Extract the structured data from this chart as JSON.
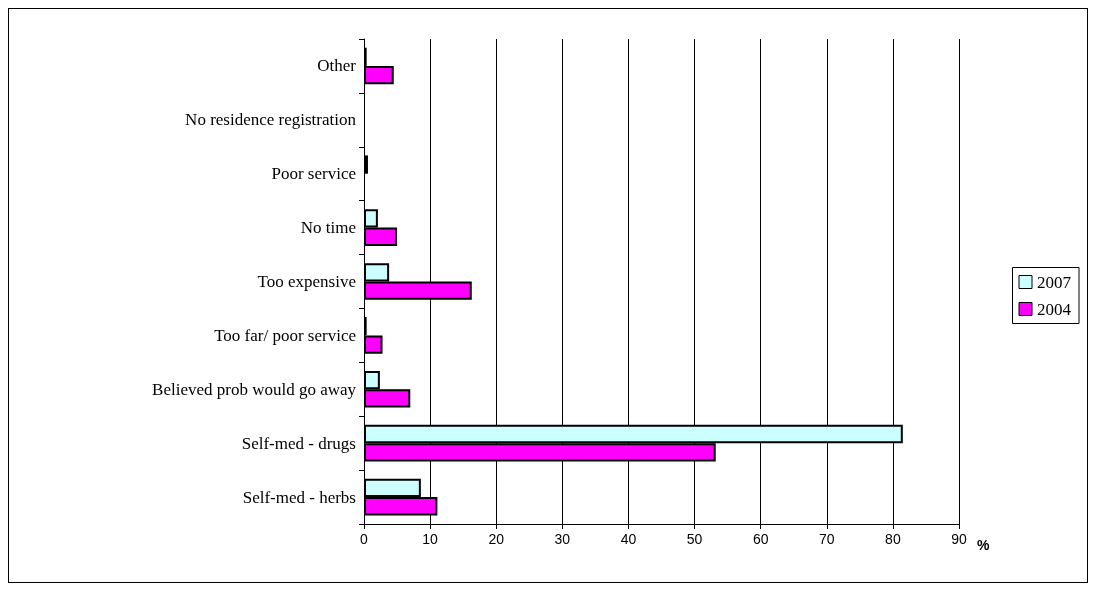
{
  "chart_data": {
    "type": "bar",
    "orientation": "horizontal",
    "xlabel": "%",
    "categories": [
      "Other",
      "No residence registration",
      "Poor service",
      "No time",
      "Too expensive",
      "Too far/ poor service",
      "Believed prob would go away",
      "Self-med - drugs",
      "Self-med - herbs"
    ],
    "series": [
      {
        "name": "2007",
        "color": "#ccffff",
        "values": [
          0.4,
          null,
          0.6,
          2.1,
          3.8,
          0.4,
          2.4,
          81.5,
          8.6
        ]
      },
      {
        "name": "2004",
        "color": "#ff00ff",
        "values": [
          4.5,
          null,
          null,
          5,
          16.3,
          2.8,
          7,
          53.2,
          11.1
        ]
      }
    ],
    "xlim": [
      0,
      90
    ],
    "xticks": [
      0,
      10,
      20,
      30,
      40,
      50,
      60,
      70,
      80,
      90
    ],
    "grid": "x",
    "legend": "right"
  }
}
